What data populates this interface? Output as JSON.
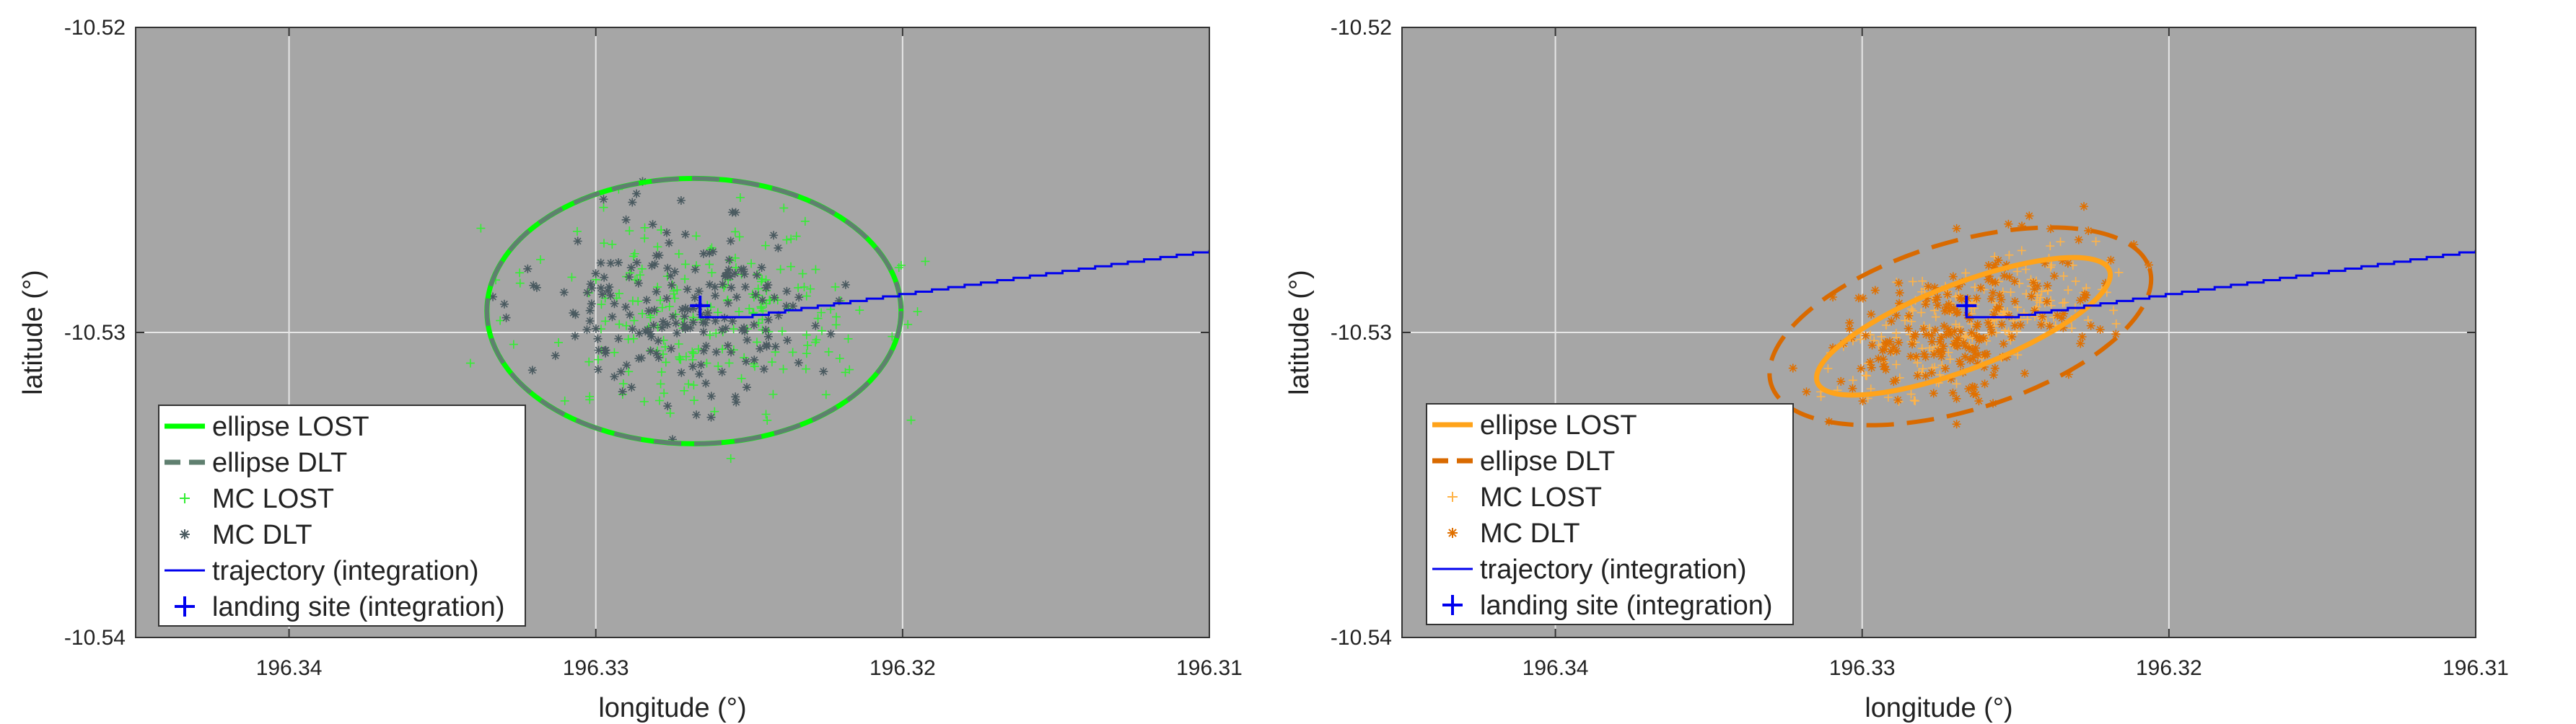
{
  "chart_data": [
    {
      "type": "scatter",
      "panel": "left",
      "xlabel": "longitude (°)",
      "ylabel": "latitude (°)",
      "xlim": [
        196.345,
        196.31
      ],
      "x_reversed": true,
      "ylim": [
        -10.54,
        -10.52
      ],
      "xticks": [
        196.34,
        196.33,
        196.32,
        196.31
      ],
      "xtick_labels": [
        "196.34",
        "196.33",
        "196.32",
        "196.31"
      ],
      "yticks": [
        -10.52,
        -10.53,
        -10.54
      ],
      "ytick_labels": [
        "-10.52",
        "-10.53",
        "-10.54"
      ],
      "grid": true,
      "background": "#a6a6a6",
      "legend_position": "bottom-left",
      "landing_site": [
        196.3266,
        -10.5295
      ],
      "series": [
        {
          "name": "ellipse LOST",
          "kind": "ellipse",
          "style": "solid",
          "color": "#00ff00",
          "center": [
            196.3268,
            -10.5293
          ],
          "semi_axes": [
            0.00675,
            0.00435
          ],
          "angle_deg": 0
        },
        {
          "name": "ellipse DLT",
          "kind": "ellipse",
          "style": "dashed",
          "color": "#5f7f6f",
          "center": [
            196.3268,
            -10.5293
          ],
          "semi_axes": [
            0.00675,
            0.00435
          ],
          "angle_deg": 0
        },
        {
          "name": "MC LOST",
          "kind": "scatter",
          "marker": "+",
          "color": "#33ee33",
          "center": [
            196.3262,
            -10.5295
          ],
          "spread": [
            0.0028,
            0.0017
          ],
          "count": 220,
          "seed": 11
        },
        {
          "name": "MC DLT",
          "kind": "scatter",
          "marker": "*",
          "color": "#4a5a60",
          "center": [
            196.3274,
            -10.5292
          ],
          "spread": [
            0.0022,
            0.0014
          ],
          "count": 200,
          "seed": 23
        },
        {
          "name": "trajectory (integration)",
          "kind": "trajectory",
          "color": "#0000ee",
          "start": [
            196.3266,
            -10.5295
          ],
          "end": [
            196.31,
            -10.5273
          ],
          "steps": 29
        },
        {
          "name": "landing site (integration)",
          "kind": "landing",
          "marker": "+",
          "color": "#0000ee"
        }
      ]
    },
    {
      "type": "scatter",
      "panel": "right",
      "xlabel": "longitude (°)",
      "ylabel": "latitude (°)",
      "xlim": [
        196.345,
        196.31
      ],
      "x_reversed": true,
      "ylim": [
        -10.54,
        -10.52
      ],
      "xticks": [
        196.34,
        196.33,
        196.32,
        196.31
      ],
      "xtick_labels": [
        "196.34",
        "196.33",
        "196.32",
        "196.31"
      ],
      "yticks": [
        -10.52,
        -10.53,
        -10.54
      ],
      "ytick_labels": [
        "-10.52",
        "-10.53",
        "-10.54"
      ],
      "grid": true,
      "background": "#a6a6a6",
      "legend_position": "bottom-left",
      "landing_site": [
        196.3266,
        -10.5295
      ],
      "series": [
        {
          "name": "ellipse LOST",
          "kind": "ellipse",
          "style": "solid",
          "color": "#ffa31a",
          "center": [
            196.3267,
            -10.5298
          ],
          "semi_axes": [
            0.0051,
            0.0014
          ],
          "angle_deg": 21
        },
        {
          "name": "ellipse DLT",
          "kind": "ellipse",
          "style": "dashed",
          "color": "#d96a00",
          "center": [
            196.3268,
            -10.5298
          ],
          "semi_axes": [
            0.00645,
            0.00275
          ],
          "angle_deg": 17
        },
        {
          "name": "MC LOST",
          "kind": "scatter",
          "marker": "+",
          "color": "#ffb347",
          "center": [
            196.3266,
            -10.5298
          ],
          "spread": [
            0.0022,
            0.0009
          ],
          "count": 200,
          "seed": 37,
          "angle_deg": 20
        },
        {
          "name": "MC DLT",
          "kind": "scatter",
          "marker": "*",
          "color": "#e07000",
          "center": [
            196.3266,
            -10.5298
          ],
          "spread": [
            0.0024,
            0.0011
          ],
          "count": 220,
          "seed": 41,
          "angle_deg": 18
        },
        {
          "name": "trajectory (integration)",
          "kind": "trajectory",
          "color": "#0000ee",
          "start": [
            196.3266,
            -10.5295
          ],
          "end": [
            196.31,
            -10.5273
          ],
          "steps": 29
        },
        {
          "name": "landing site (integration)",
          "kind": "landing",
          "marker": "+",
          "color": "#0000ee"
        }
      ]
    }
  ]
}
